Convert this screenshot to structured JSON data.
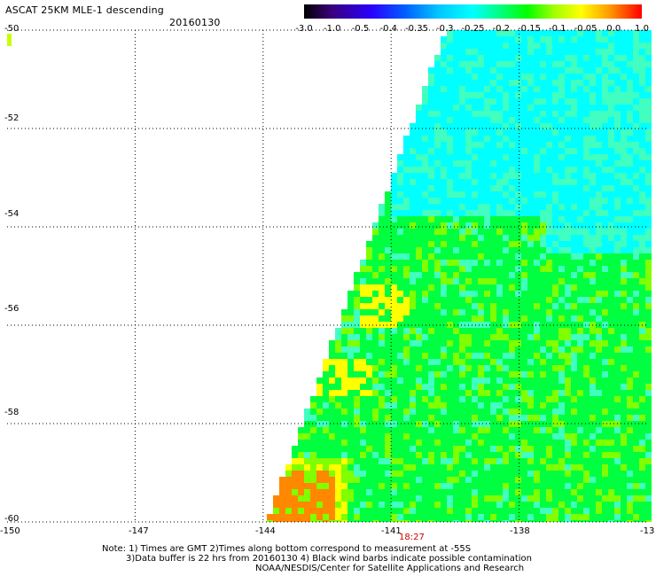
{
  "header": {
    "title": "ASCAT 25KM MLE-1 descending",
    "date": "20160130"
  },
  "colorbar": {
    "labels": [
      "-3.0",
      "-1.0",
      "-0.5",
      "-0.4",
      "-0.35",
      "-0.3",
      "-0.25",
      "-0.2",
      "-0.15",
      "-0.1",
      "-0.05",
      "0.0",
      "1.0"
    ],
    "colors": [
      "#000000",
      "#3a007a",
      "#2a00ff",
      "#0060ff",
      "#00c8ff",
      "#00ffff",
      "#00ff80",
      "#00ff00",
      "#a0ff00",
      "#ffff00",
      "#ffa000",
      "#ff0000"
    ]
  },
  "axes": {
    "y_labels": [
      "-50",
      "-52",
      "-54",
      "-56",
      "-58",
      "-60"
    ],
    "x_labels": [
      "-150",
      "-147",
      "-144",
      "-141",
      "-138",
      "-13"
    ],
    "time_label": "18:27"
  },
  "map": {
    "lon_range": [
      -150,
      -135
    ],
    "lat_range": [
      -60,
      -50
    ],
    "swath_colors": {
      "cyan": "#00ffff",
      "aqua": "#40ffc0",
      "green": "#00ff40",
      "lime": "#80ff00",
      "yellow": "#ffff00",
      "orange": "#ff8800"
    }
  },
  "notes": {
    "line1": "Note: 1) Times are GMT 2)Times along bottom correspond to measurement at -55S",
    "line2": "3)Data buffer is 22 hrs from 20160130 4) Black wind barbs indicate possible contamination",
    "line3": "NOAA/NESDIS/Center for Satellite Applications and Research"
  }
}
